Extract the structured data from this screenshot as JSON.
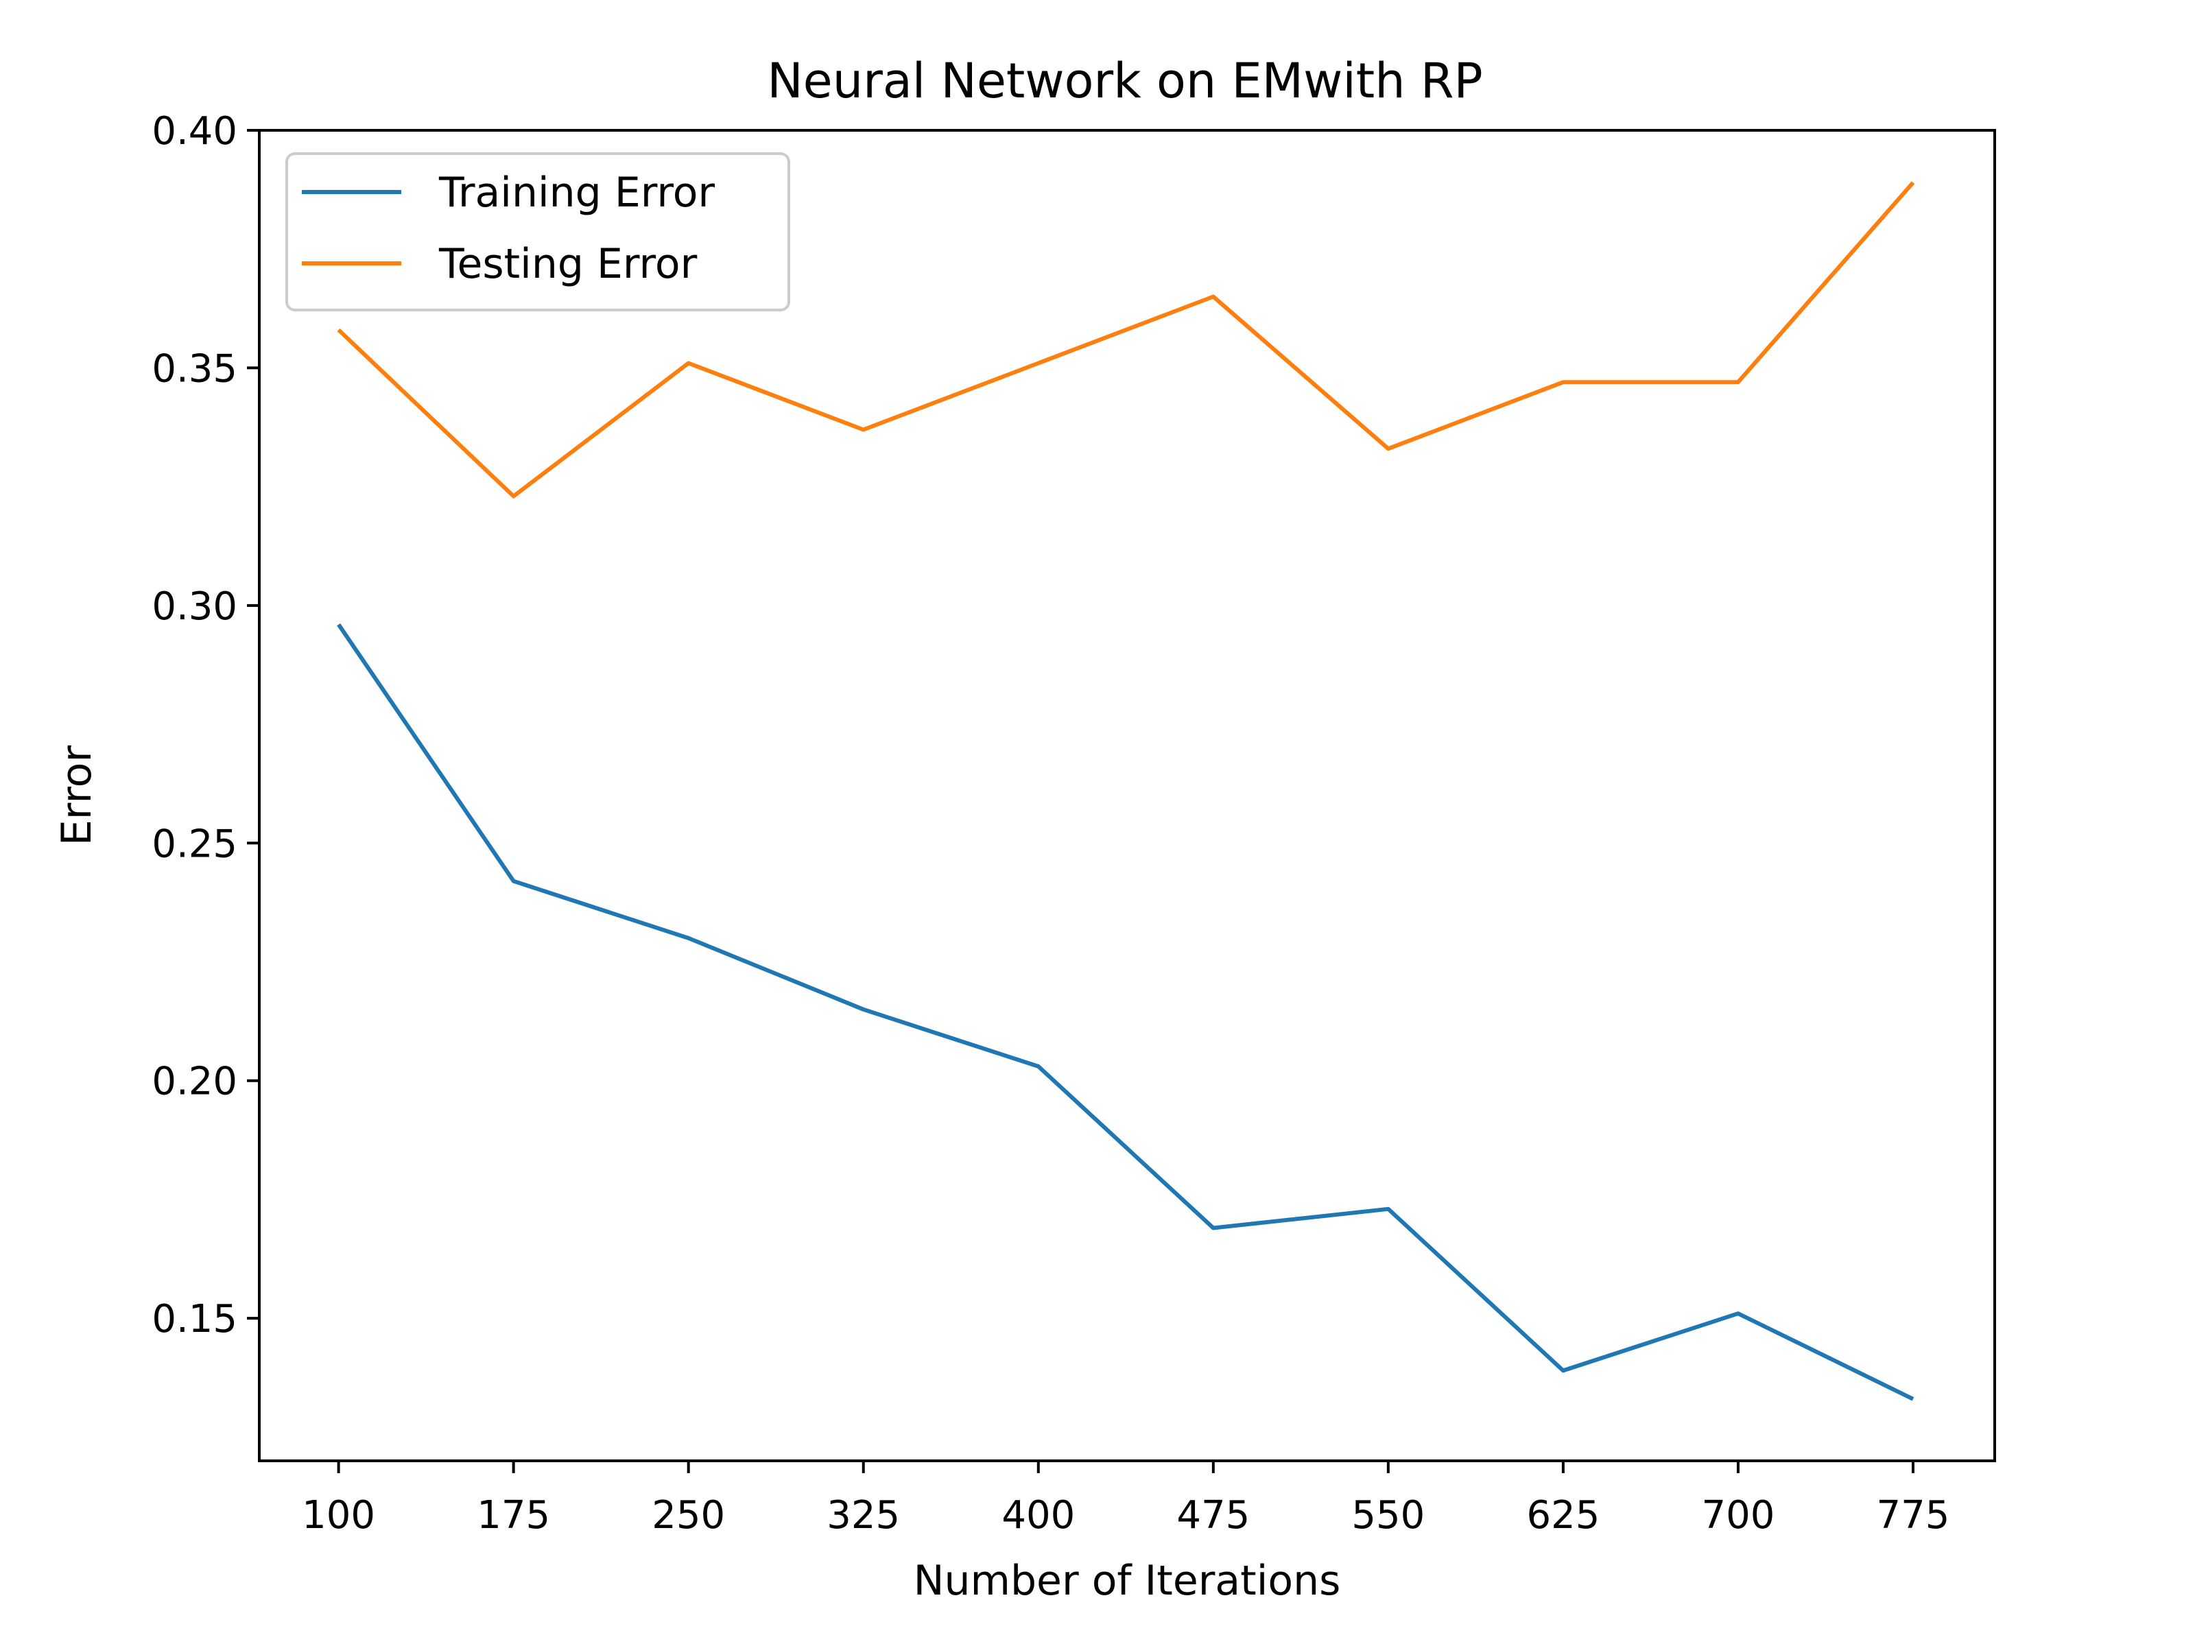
{
  "chart_data": {
    "type": "line",
    "title": "Neural Network on EMwith RP",
    "xlabel": "Number of Iterations",
    "ylabel": "Error",
    "x": [
      100,
      175,
      250,
      325,
      400,
      475,
      550,
      625,
      700,
      775
    ],
    "x_ticks": [
      "100",
      "175",
      "250",
      "325",
      "400",
      "475",
      "550",
      "625",
      "700",
      "775"
    ],
    "y_ticks": [
      "0.15",
      "0.20",
      "0.25",
      "0.30",
      "0.35",
      "0.40"
    ],
    "xlim": [
      66,
      810
    ],
    "ylim": [
      0.12,
      0.4
    ],
    "grid": false,
    "legend_position": "top-left",
    "series": [
      {
        "name": "Training Error",
        "color": "#1f77b4",
        "values": [
          0.296,
          0.242,
          0.23,
          0.215,
          0.203,
          0.169,
          0.173,
          0.139,
          0.151,
          0.133
        ]
      },
      {
        "name": "Testing Error",
        "color": "#ff7f0e",
        "values": [
          0.358,
          0.323,
          0.351,
          0.337,
          0.351,
          0.365,
          0.333,
          0.347,
          0.347,
          0.389
        ]
      }
    ]
  }
}
